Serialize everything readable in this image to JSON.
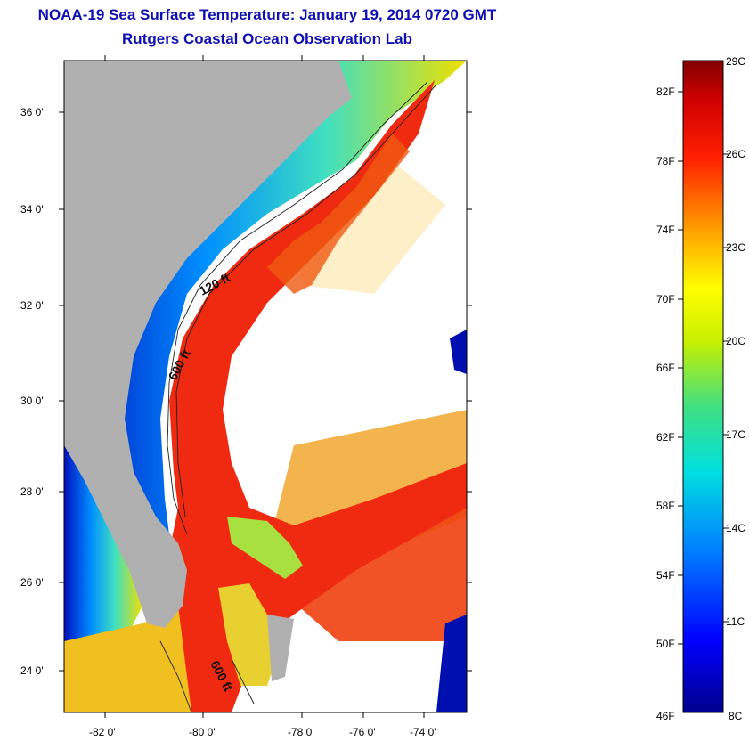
{
  "header": {
    "title": "NOAA-19 Sea Surface Temperature:  January 19, 2014 0720 GMT",
    "subtitle": "Rutgers Coastal Ocean Observation Lab"
  },
  "map": {
    "lat_labels": [
      "36 0'",
      "34 0'",
      "32 0'",
      "30 0'",
      "28 0'",
      "26 0'",
      "24 0'"
    ],
    "lon_labels": [
      "-82 0'",
      "-80 0'",
      "-78 0'",
      "-76 0'",
      "-74 0'"
    ],
    "isobath_labels": [
      "120 ft",
      "600 ft",
      "600 ft"
    ],
    "colors": {
      "land": "#b0b0b0",
      "cloud": "#ffffff"
    }
  },
  "colorbar": {
    "f_labels": [
      "82F",
      "78F",
      "74F",
      "70F",
      "66F",
      "62F",
      "58F",
      "54F",
      "50F",
      "46F"
    ],
    "c_labels": [
      "29C",
      "26C",
      "23C",
      "20C",
      "17C",
      "14C",
      "11C",
      "8C"
    ]
  }
}
